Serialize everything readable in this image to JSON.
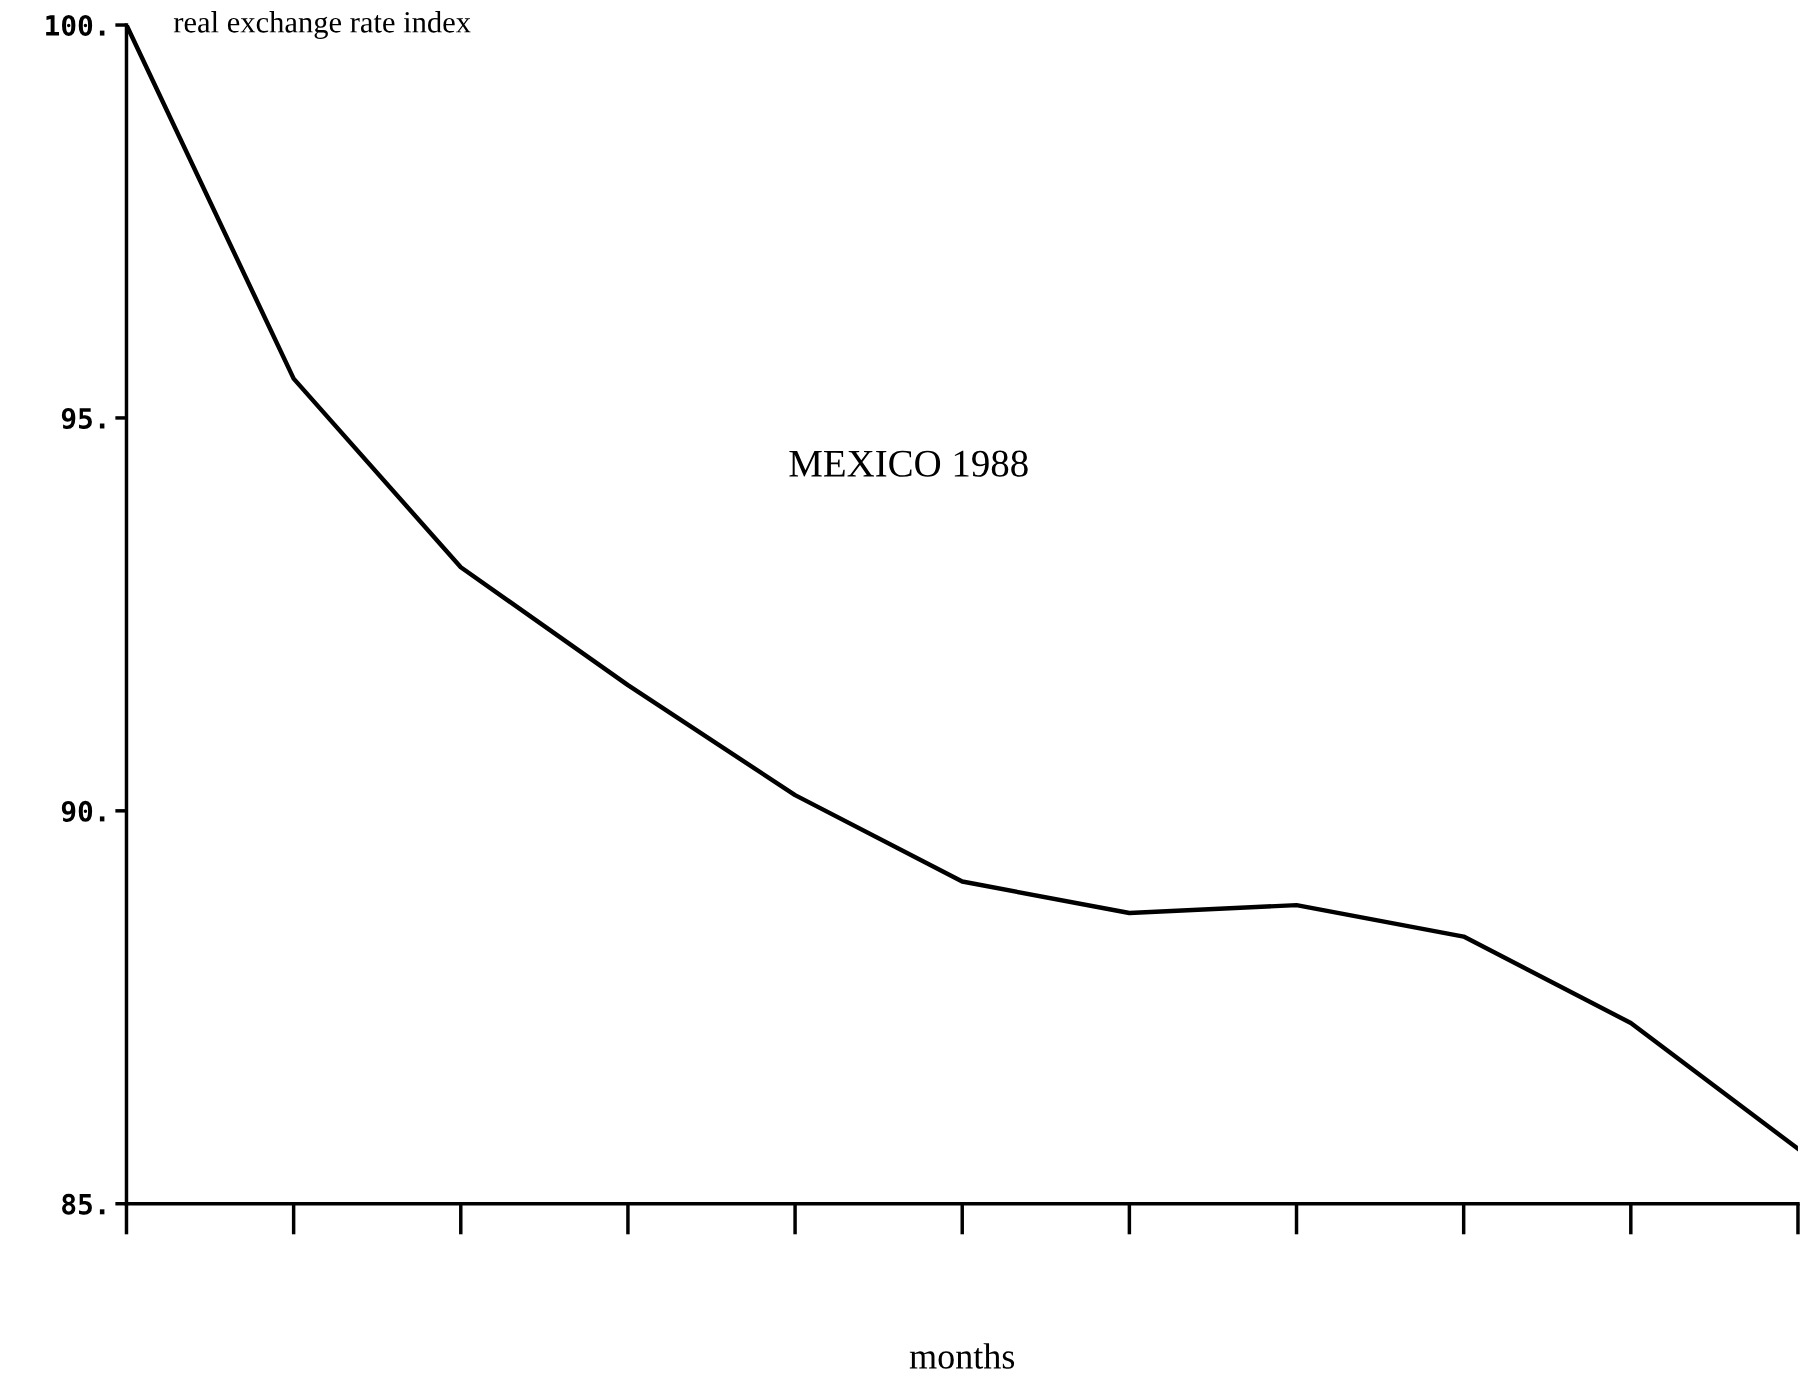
{
  "chart_data": {
    "type": "line",
    "ylabel": "real exchange rate index",
    "xlabel": "months",
    "annotations": [
      "MEXICO 1988"
    ],
    "categories": [
      null,
      null,
      null,
      null,
      null,
      null,
      null,
      null,
      null,
      null,
      null
    ],
    "series": [
      {
        "color": "#000000",
        "values": [
          100,
          95.5,
          93.1,
          91.6,
          90.2,
          89.1,
          88.7,
          88.8,
          88.4,
          87.3,
          85.7
        ]
      }
    ],
    "ylim": [
      85,
      100
    ],
    "yticks": [
      {
        "value": 85,
        "label": "85."
      },
      {
        "value": 90,
        "label": "90."
      },
      {
        "value": 95,
        "label": "95."
      },
      {
        "value": 100,
        "label": "100."
      }
    ],
    "grid": false,
    "legend": false,
    "marker": "none",
    "line_style": "solid"
  }
}
